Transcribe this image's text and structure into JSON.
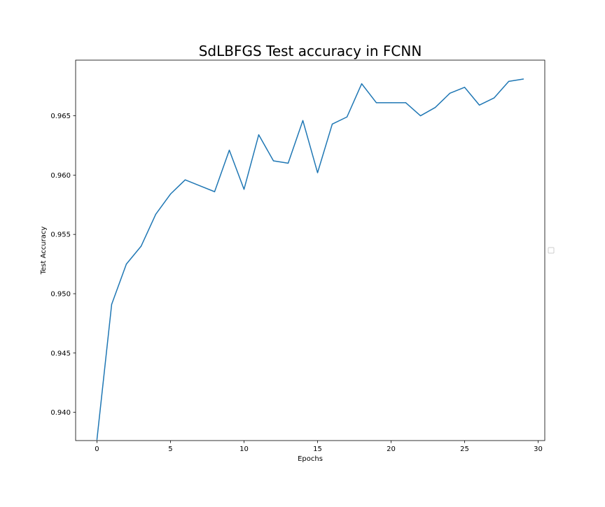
{
  "chart_data": {
    "type": "line",
    "title": "SdLBFGS Test accuracy in FCNN",
    "xlabel": "Epochs",
    "ylabel": "Test Accuracy",
    "xlim": [
      -1.45,
      30.45
    ],
    "ylim": [
      0.93762,
      0.96969
    ],
    "x_ticks": [
      0,
      5,
      10,
      15,
      20,
      25,
      30
    ],
    "y_ticks": [
      0.94,
      0.945,
      0.95,
      0.955,
      0.96,
      0.965
    ],
    "x_tick_labels": [
      "0",
      "5",
      "10",
      "15",
      "20",
      "25",
      "30"
    ],
    "y_tick_labels": [
      "0.940",
      "0.945",
      "0.950",
      "0.955",
      "0.960",
      "0.965"
    ],
    "grid": false,
    "legend": {
      "placement": "center right, outside axes",
      "entries": []
    },
    "series": [
      {
        "color": "#1f77b4",
        "x": [
          0,
          1,
          2,
          3,
          4,
          5,
          6,
          7,
          8,
          9,
          10,
          11,
          12,
          13,
          14,
          15,
          16,
          17,
          18,
          19,
          20,
          21,
          22,
          23,
          24,
          25,
          26,
          27,
          28,
          29
        ],
        "y": [
          0.9377,
          0.9491,
          0.9525,
          0.954,
          0.9567,
          0.9584,
          0.9596,
          0.9591,
          0.9586,
          0.9621,
          0.9588,
          0.9634,
          0.9612,
          0.961,
          0.9646,
          0.9602,
          0.9643,
          0.9649,
          0.9677,
          0.9661,
          0.9661,
          0.9661,
          0.965,
          0.9657,
          0.9669,
          0.9674,
          0.9659,
          0.9665,
          0.9679,
          0.9681
        ]
      }
    ]
  }
}
